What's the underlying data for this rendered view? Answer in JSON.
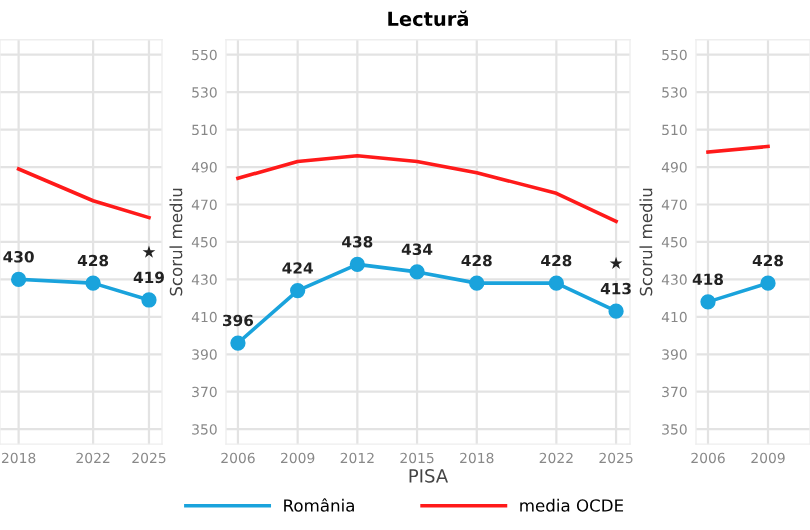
{
  "chart_data": [
    {
      "type": "line",
      "x": [
        2018,
        2022,
        2025
      ],
      "xlim": [
        2017.0,
        2025.7
      ],
      "xticks": [
        2018,
        2022,
        2025
      ],
      "ylim": [
        342,
        558
      ],
      "yticks": [
        350,
        370,
        390,
        410,
        430,
        450,
        470,
        490,
        510,
        530,
        550
      ],
      "tick_labels": "x",
      "grid": true,
      "annotations": [
        "★"
      ],
      "series": [
        {
          "color": "#ff1a1a",
          "values": [
            489,
            472,
            463
          ],
          "marker": "none"
        },
        {
          "color": "#1aa3dc",
          "values": [
            430,
            428,
            419
          ],
          "marker": "circle",
          "value_labels": [
            "430",
            "428",
            "419"
          ]
        }
      ]
    },
    {
      "type": "line",
      "title": "Lectură",
      "xlabel": "PISA",
      "ylabel": "Scorul mediu",
      "x": [
        2006,
        2009,
        2012,
        2015,
        2018,
        2022,
        2025
      ],
      "xlim": [
        2005.4,
        2025.7
      ],
      "xticks": [
        2006,
        2009,
        2012,
        2015,
        2018,
        2022,
        2025
      ],
      "ylim": [
        342,
        558
      ],
      "yticks": [
        350,
        370,
        390,
        410,
        430,
        450,
        470,
        490,
        510,
        530,
        550
      ],
      "grid": true,
      "legend": "bottom",
      "annotations": [
        "★"
      ],
      "series": [
        {
          "name": "România",
          "color": "#1aa3dc",
          "values": [
            396,
            424,
            438,
            434,
            428,
            428,
            413
          ],
          "marker": "circle",
          "value_labels": [
            "396",
            "424",
            "438",
            "434",
            "428",
            "428",
            "413"
          ]
        },
        {
          "name": "media OCDE",
          "color": "#ff1a1a",
          "values": [
            484,
            493,
            496,
            493,
            487,
            476,
            461
          ],
          "marker": "none"
        }
      ]
    },
    {
      "type": "line",
      "ylabel": "Scorul mediu",
      "x": [
        2006,
        2009
      ],
      "xlim": [
        2005.4,
        2011.1
      ],
      "xticks": [
        2006,
        2009
      ],
      "ylim": [
        342,
        558
      ],
      "yticks": [
        350,
        370,
        390,
        410,
        430,
        450,
        470,
        490,
        510,
        530,
        550
      ],
      "grid": true,
      "series": [
        {
          "color": "#ff1a1a",
          "values": [
            498,
            501
          ],
          "marker": "none"
        },
        {
          "color": "#1aa3dc",
          "values": [
            418,
            428
          ],
          "marker": "circle",
          "value_labels": [
            "418",
            "428"
          ]
        }
      ]
    }
  ]
}
